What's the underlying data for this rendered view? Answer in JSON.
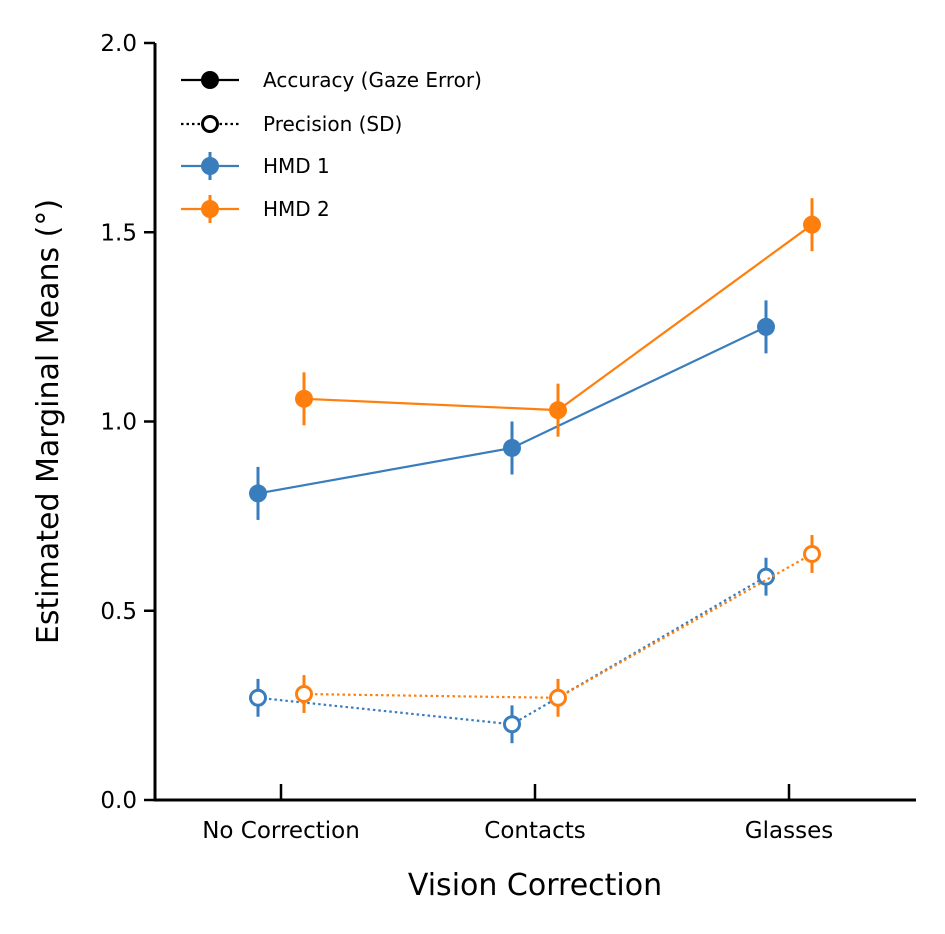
{
  "chart_data": {
    "type": "line",
    "xlabel": "Vision Correction",
    "ylabel": "Estimated Marginal Means (°)",
    "categories": [
      "No Correction",
      "Contacts",
      "Glasses"
    ],
    "ylim": [
      0.0,
      2.0
    ],
    "yticks": [
      "0.0",
      "0.5",
      "1.0",
      "1.5",
      "2.0"
    ],
    "grid": false,
    "legend_position": "top-left",
    "legend": [
      {
        "label": "Accuracy (Gaze Error)",
        "style": "solid-filled"
      },
      {
        "label": "Precision (SD)",
        "style": "dotted-open"
      },
      {
        "label": "HMD 1",
        "style": "color",
        "color": "#3a7dbd"
      },
      {
        "label": "HMD 2",
        "style": "color",
        "color": "#ff7f0e"
      }
    ],
    "series": [
      {
        "hmd": "HMD 1",
        "measure": "Accuracy (Gaze Error)",
        "color": "#3a7dbd",
        "marker": "filled",
        "line": "solid",
        "offset": "left",
        "values": [
          0.81,
          0.93,
          1.25
        ],
        "err": [
          0.07,
          0.07,
          0.07
        ]
      },
      {
        "hmd": "HMD 2",
        "measure": "Accuracy (Gaze Error)",
        "color": "#ff7f0e",
        "marker": "filled",
        "line": "solid",
        "offset": "right",
        "values": [
          1.06,
          1.03,
          1.52
        ],
        "err": [
          0.07,
          0.07,
          0.07
        ]
      },
      {
        "hmd": "HMD 1",
        "measure": "Precision (SD)",
        "color": "#3a7dbd",
        "marker": "open",
        "line": "dotted",
        "offset": "left",
        "values": [
          0.27,
          0.2,
          0.59
        ],
        "err": [
          0.05,
          0.05,
          0.05
        ]
      },
      {
        "hmd": "HMD 2",
        "measure": "Precision (SD)",
        "color": "#ff7f0e",
        "marker": "open",
        "line": "dotted",
        "offset": "right",
        "values": [
          0.28,
          0.27,
          0.65
        ],
        "err": [
          0.05,
          0.05,
          0.05
        ]
      }
    ]
  }
}
